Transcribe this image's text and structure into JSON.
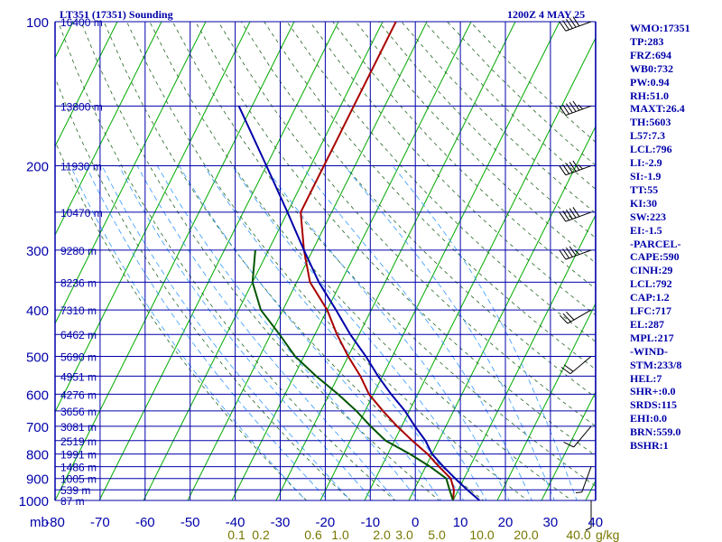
{
  "chart_data": {
    "type": "line",
    "title": "LT351 (17351) Sounding",
    "valid_time": "1200Z  4 MAY 25",
    "axis_unit_label": "mb",
    "mixing_ratio_label": "g/kg",
    "xlim": [
      -80,
      40
    ],
    "ylim": [
      1000,
      100
    ],
    "grid": true,
    "x_ticks": [
      "-80",
      "-70",
      "-60",
      "-50",
      "-40",
      "-30",
      "-20",
      "-10",
      "0",
      "10",
      "20",
      "30",
      "40"
    ],
    "y_ticks": [
      {
        "p": 100,
        "label": "100",
        "height": "16400 m"
      },
      {
        "p": 150,
        "label": "",
        "height": "13800 m"
      },
      {
        "p": 200,
        "label": "200",
        "height": "11930 m"
      },
      {
        "p": 250,
        "label": "",
        "height": "10470 m"
      },
      {
        "p": 300,
        "label": "300",
        "height": "9280 m"
      },
      {
        "p": 350,
        "label": "",
        "height": "8236 m"
      },
      {
        "p": 400,
        "label": "400",
        "height": "7310 m"
      },
      {
        "p": 450,
        "label": "",
        "height": "6462 m"
      },
      {
        "p": 500,
        "label": "500",
        "height": "5690 m"
      },
      {
        "p": 550,
        "label": "",
        "height": "4951 m"
      },
      {
        "p": 600,
        "label": "600",
        "height": "4276 m"
      },
      {
        "p": 650,
        "label": "",
        "height": "3656 m"
      },
      {
        "p": 700,
        "label": "700",
        "height": "3081 m"
      },
      {
        "p": 750,
        "label": "",
        "height": "2519 m"
      },
      {
        "p": 800,
        "label": "800",
        "height": "1991 m"
      },
      {
        "p": 850,
        "label": "",
        "height": "1486 m"
      },
      {
        "p": 900,
        "label": "900",
        "height": "1005 m"
      },
      {
        "p": 950,
        "label": "",
        "height": "539 m"
      },
      {
        "p": 1000,
        "label": "1000",
        "height": "87 m"
      }
    ],
    "mixing_ratio_labels": [
      "0.1",
      "0.2",
      "0.6",
      "1.0",
      "2.0",
      "3.0",
      "5.0",
      "10.0",
      "20.0",
      "40.0"
    ],
    "series": [
      {
        "key": "temperature",
        "color": "#aa0000",
        "points": [
          [
            1000,
            10
          ],
          [
            950,
            9
          ],
          [
            900,
            7
          ],
          [
            850,
            3
          ],
          [
            800,
            -1
          ],
          [
            750,
            -6
          ],
          [
            700,
            -11
          ],
          [
            650,
            -16
          ],
          [
            600,
            -21
          ],
          [
            550,
            -25
          ],
          [
            500,
            -30
          ],
          [
            450,
            -35
          ],
          [
            400,
            -40
          ],
          [
            350,
            -47
          ],
          [
            300,
            -52
          ],
          [
            250,
            -57
          ],
          [
            230,
            -57
          ],
          [
            200,
            -57
          ],
          [
            180,
            -57
          ],
          [
            150,
            -57
          ],
          [
            130,
            -57
          ],
          [
            100,
            -57
          ]
        ]
      },
      {
        "key": "dewpoint",
        "color": "#005500",
        "points": [
          [
            1000,
            10
          ],
          [
            950,
            8
          ],
          [
            900,
            6
          ],
          [
            850,
            1
          ],
          [
            800,
            -5
          ],
          [
            750,
            -12
          ],
          [
            700,
            -17
          ],
          [
            650,
            -22
          ],
          [
            600,
            -28
          ],
          [
            550,
            -35
          ],
          [
            500,
            -42
          ],
          [
            450,
            -48
          ],
          [
            400,
            -55
          ],
          [
            350,
            -60
          ],
          [
            300,
            -63
          ]
        ]
      },
      {
        "key": "parcel",
        "color": "#0000aa",
        "points": [
          [
            1000,
            16
          ],
          [
            950,
            12
          ],
          [
            900,
            8
          ],
          [
            850,
            4
          ],
          [
            800,
            0
          ],
          [
            750,
            -3
          ],
          [
            700,
            -7
          ],
          [
            650,
            -11
          ],
          [
            600,
            -16
          ],
          [
            550,
            -21
          ],
          [
            500,
            -26
          ],
          [
            450,
            -32
          ],
          [
            400,
            -38
          ],
          [
            350,
            -45
          ],
          [
            300,
            -52
          ],
          [
            250,
            -60
          ],
          [
            200,
            -70
          ],
          [
            150,
            -83
          ]
        ]
      }
    ],
    "wind_barbs": [
      {
        "p": 100,
        "dir": 250,
        "spd": 50
      },
      {
        "p": 150,
        "dir": 250,
        "spd": 55
      },
      {
        "p": 200,
        "dir": 250,
        "spd": 55
      },
      {
        "p": 250,
        "dir": 250,
        "spd": 50
      },
      {
        "p": 300,
        "dir": 250,
        "spd": 45
      },
      {
        "p": 400,
        "dir": 240,
        "spd": 30
      },
      {
        "p": 500,
        "dir": 230,
        "spd": 20
      },
      {
        "p": 700,
        "dir": 220,
        "spd": 10
      },
      {
        "p": 850,
        "dir": 200,
        "spd": 5
      },
      {
        "p": 1000,
        "dir": 180,
        "spd": 5
      }
    ]
  },
  "stats": [
    "WMO:17351",
    "TP:283",
    "FRZ:694",
    "WB0:732",
    "PW:0.94",
    "RH:51.0",
    "MAXT:26.4",
    "TH:5603",
    "L57:7.3",
    "LCL:796",
    "LI:-2.9",
    "SI:-1.9",
    "TT:55",
    "KI:30",
    "SW:223",
    "EI:-1.5",
    "-PARCEL-",
    "CAPE:590",
    "CINH:29",
    "LCL:792",
    "CAP:1.2",
    "LFC:717",
    "EL:287",
    "MPL:217",
    "-WIND-",
    "STM:233/8",
    "HEL:7",
    "SHR+:0.0",
    "SRDS:115",
    "EHI:0.0",
    "BRN:559.0",
    "BSHR:1"
  ],
  "colors": {
    "grid": "#0000aa",
    "isotherm": "#00aa00",
    "dry_adiabat": "#226622",
    "moist_adiabat": "#3399ff",
    "labels": "#0000aa"
  }
}
